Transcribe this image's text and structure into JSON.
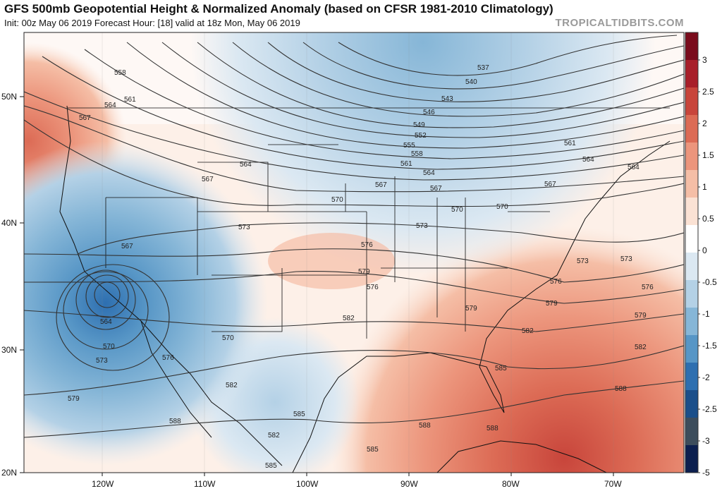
{
  "header": {
    "title": "GFS 500mb Geopotential Height & Normalized Anomaly (based on CFSR 1981-2010 Climatology)",
    "subtitle": "Init: 00z May 06 2019   Forecast Hour: [18]   valid at 18z Mon, May 06 2019",
    "brand": "TROPICALTIDBITS.COM"
  },
  "map": {
    "lat_labels": [
      "50N",
      "40N",
      "30N",
      "20N"
    ],
    "lon_labels": [
      "120W",
      "110W",
      "100W",
      "90W",
      "80W",
      "70W"
    ],
    "contour_labels": [
      "537",
      "540",
      "543",
      "546",
      "549",
      "552",
      "555",
      "558",
      "561",
      "564",
      "567",
      "570",
      "573",
      "576",
      "579",
      "582",
      "585",
      "588",
      "558",
      "561",
      "564",
      "567",
      "564",
      "567",
      "570",
      "573",
      "576",
      "579",
      "582",
      "585",
      "588",
      "567",
      "564",
      "570",
      "573",
      "576",
      "579",
      "582",
      "564",
      "567",
      "570",
      "573",
      "576",
      "579",
      "582",
      "585",
      "588",
      "561",
      "564",
      "567",
      "570",
      "573",
      "576",
      "579",
      "582",
      "585",
      "588"
    ]
  },
  "colorbar": {
    "labels": [
      "3",
      "2.5",
      "2",
      "1.5",
      "1",
      "0.5",
      "0",
      "-0.5",
      "-1",
      "-1.5",
      "-2",
      "-2.5",
      "-3",
      "-5"
    ],
    "colors": [
      "#7a0b1c",
      "#a81f2a",
      "#c8453b",
      "#dc6b55",
      "#ec957c",
      "#f5bea6",
      "#fbe2d4",
      "#ffffff",
      "#dbe8f2",
      "#b4d1e6",
      "#86b6d7",
      "#5796c6",
      "#2e6fb0",
      "#1b4f8a",
      "#3d4d5c",
      "#0c1f4f"
    ]
  }
}
